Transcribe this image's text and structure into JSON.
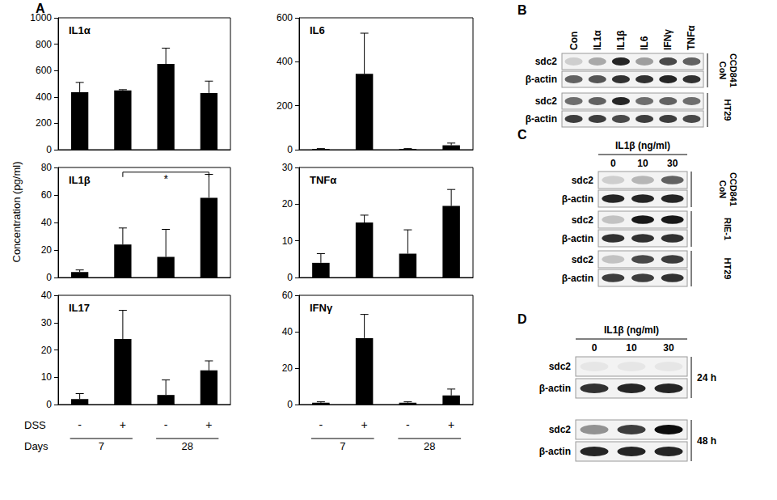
{
  "chart_data": [
    {
      "type": "bar",
      "title": "IL1α",
      "categories": [
        null,
        null,
        null,
        null
      ],
      "values": [
        435,
        450,
        650,
        430
      ],
      "errors": [
        75,
        5,
        120,
        90
      ],
      "ylim": [
        0,
        1000
      ],
      "yticks": [
        0,
        200,
        400,
        600,
        800,
        1000
      ],
      "color": "#000000",
      "grid": false,
      "tick_labels": "y"
    },
    {
      "type": "bar",
      "title": "IL6",
      "categories": [
        null,
        null,
        null,
        null
      ],
      "values": [
        3,
        345,
        3,
        20
      ],
      "errors": [
        2,
        185,
        2,
        10
      ],
      "ylim": [
        0,
        600
      ],
      "yticks": [
        0,
        200,
        400,
        600
      ],
      "color": "#000000",
      "grid": false,
      "tick_labels": "y"
    },
    {
      "type": "bar",
      "title": "IL1β",
      "categories": [
        null,
        null,
        null,
        null
      ],
      "values": [
        4,
        24,
        15,
        58
      ],
      "errors": [
        1.5,
        12,
        20,
        17
      ],
      "ylim": [
        0,
        80
      ],
      "yticks": [
        0,
        20,
        40,
        60,
        80
      ],
      "color": "#000000",
      "grid": false,
      "tick_labels": "y",
      "significance": [
        {
          "from": 1,
          "to": 3,
          "label": "*"
        }
      ]
    },
    {
      "type": "bar",
      "title": "TNFα",
      "categories": [
        null,
        null,
        null,
        null
      ],
      "values": [
        4,
        15,
        6.5,
        19.5
      ],
      "errors": [
        2.5,
        2,
        6.5,
        4.5
      ],
      "ylim": [
        0,
        30
      ],
      "yticks": [
        0,
        10,
        20,
        30
      ],
      "color": "#000000",
      "grid": false,
      "tick_labels": "y"
    },
    {
      "type": "bar",
      "title": "IL17",
      "categories": [
        null,
        null,
        null,
        null
      ],
      "values": [
        2,
        24,
        3.5,
        12.5
      ],
      "errors": [
        2,
        10.5,
        5.5,
        3.5
      ],
      "ylim": [
        0,
        40
      ],
      "yticks": [
        0,
        10,
        20,
        30,
        40
      ],
      "color": "#000000",
      "grid": false,
      "tick_labels": "y"
    },
    {
      "type": "bar",
      "title": "IFNγ",
      "categories": [
        null,
        null,
        null,
        null
      ],
      "values": [
        1,
        36.5,
        1,
        5
      ],
      "errors": [
        0.5,
        13,
        0.5,
        3.5
      ],
      "ylim": [
        0,
        60
      ],
      "yticks": [
        0,
        20,
        40,
        60
      ],
      "color": "#000000",
      "grid": false,
      "tick_labels": "y"
    }
  ],
  "panel_a": {
    "label": "A",
    "y_axis_label": "Concentration (pg/ml)",
    "x_rows": [
      {
        "label": "DSS",
        "labels": [
          "-",
          "+",
          "-",
          "+"
        ]
      },
      {
        "label": "Days",
        "groups": [
          {
            "label": "7",
            "span": [
              0,
              1
            ]
          },
          {
            "label": "28",
            "span": [
              2,
              3
            ]
          }
        ]
      }
    ]
  },
  "blots": [
    {
      "label": "B",
      "lanes": [
        "Con",
        "IL1α",
        "IL1β",
        "IL6",
        "IFNγ",
        "TNFα"
      ],
      "groups": [
        {
          "name": "CCD841 CoN",
          "rows": [
            {
              "label": "sdc2",
              "intensity": [
                0.15,
                0.3,
                0.85,
                0.35,
                0.7,
                0.6
              ]
            },
            {
              "label": "β-actin",
              "intensity": [
                0.6,
                0.65,
                0.8,
                0.8,
                0.85,
                0.8
              ]
            }
          ]
        },
        {
          "name": "HT29",
          "rows": [
            {
              "label": "sdc2",
              "intensity": [
                0.55,
                0.6,
                0.85,
                0.55,
                0.6,
                0.55
              ]
            },
            {
              "label": "β-actin",
              "intensity": [
                0.75,
                0.75,
                0.7,
                0.75,
                0.75,
                0.7
              ]
            }
          ]
        }
      ]
    },
    {
      "label": "C",
      "treatment": "IL1β (ng/ml)",
      "lanes": [
        "0",
        "10",
        "30"
      ],
      "groups": [
        {
          "name": "CCD841 CoN",
          "rows": [
            {
              "label": "sdc2",
              "intensity": [
                0.15,
                0.25,
                0.6
              ]
            },
            {
              "label": "β-actin",
              "intensity": [
                0.85,
                0.85,
                0.85
              ]
            }
          ]
        },
        {
          "name": "RIE-1",
          "rows": [
            {
              "label": "sdc2",
              "intensity": [
                0.2,
                0.9,
                0.9
              ]
            },
            {
              "label": "β-actin",
              "intensity": [
                0.8,
                0.8,
                0.8
              ]
            }
          ]
        },
        {
          "name": "HT29",
          "rows": [
            {
              "label": "sdc2",
              "intensity": [
                0.2,
                0.7,
                0.75
              ]
            },
            {
              "label": "β-actin",
              "intensity": [
                0.75,
                0.75,
                0.8
              ]
            }
          ]
        }
      ]
    },
    {
      "label": "D",
      "treatment": "IL1β (ng/ml)",
      "lanes": [
        "0",
        "10",
        "30"
      ],
      "groups": [
        {
          "name": "24 h",
          "rows": [
            {
              "label": "sdc2",
              "intensity": [
                0.05,
                0.05,
                0.05
              ]
            },
            {
              "label": "β-actin",
              "intensity": [
                0.8,
                0.85,
                0.85
              ]
            }
          ]
        },
        {
          "name": "48 h",
          "rows": [
            {
              "label": "sdc2",
              "intensity": [
                0.4,
                0.75,
                0.95
              ]
            },
            {
              "label": "β-actin",
              "intensity": [
                0.85,
                0.85,
                0.85
              ]
            }
          ]
        }
      ]
    }
  ]
}
